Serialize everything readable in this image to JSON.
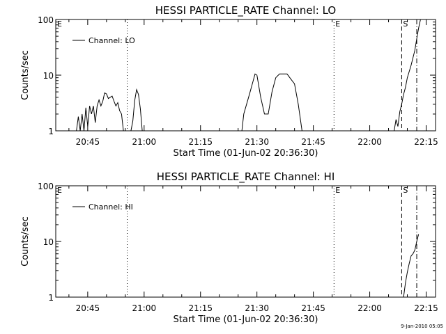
{
  "footer": {
    "timestamp": "9-Jan-2010 05:05"
  },
  "chart_data": [
    {
      "type": "line",
      "title": "HESSI PARTICLE_RATE Channel: LO",
      "xlabel": "Start Time (01-Jun-02 20:36:30)",
      "ylabel": "Counts/sec",
      "y_scale": "log",
      "ylim": [
        1,
        100
      ],
      "y_ticks": [
        {
          "value": 1,
          "label": "1"
        },
        {
          "value": 10,
          "label": "10"
        },
        {
          "value": 100,
          "label": "100"
        }
      ],
      "xlim": [
        "20:36:30",
        "22:17:30"
      ],
      "x_ticks": [
        {
          "value": "20:45",
          "label": "20:45"
        },
        {
          "value": "21:00",
          "label": "21:00"
        },
        {
          "value": "21:15",
          "label": "21:15"
        },
        {
          "value": "21:30",
          "label": "21:30"
        },
        {
          "value": "21:45",
          "label": "21:45"
        },
        {
          "value": "22:00",
          "label": "22:00"
        },
        {
          "value": "22:15",
          "label": "22:15"
        }
      ],
      "legend": {
        "entry": "Channel: LO",
        "placement": "top-left"
      },
      "markers": [
        {
          "time": "20:36:30",
          "label": "E",
          "style": "none"
        },
        {
          "time": "20:55:30",
          "label": "",
          "style": "dotted"
        },
        {
          "time": "21:50:30",
          "label": "E",
          "style": "dotted"
        },
        {
          "time": "22:08:30",
          "label": "S",
          "style": "dashed"
        },
        {
          "time": "22:12:30",
          "label": "",
          "style": "dashdot"
        }
      ],
      "series": [
        {
          "points": [
            [
              "20:40:30",
              1
            ],
            [
              "20:42:00",
              1
            ],
            [
              "20:42:30",
              1.8
            ],
            [
              "20:43:00",
              1
            ],
            [
              "20:43:30",
              2
            ],
            [
              "20:44:00",
              1
            ],
            [
              "20:44:30",
              2.6
            ],
            [
              "20:45:00",
              1.2
            ],
            [
              "20:45:30",
              2.8
            ],
            [
              "20:46:00",
              2
            ],
            [
              "20:46:30",
              2.8
            ],
            [
              "20:47:00",
              1.4
            ],
            [
              "20:47:30",
              2.8
            ],
            [
              "20:48:00",
              3.6
            ],
            [
              "20:48:30",
              2.8
            ],
            [
              "20:49:00",
              3.4
            ],
            [
              "20:49:30",
              4.8
            ],
            [
              "20:50:00",
              4.6
            ],
            [
              "20:50:30",
              3.8
            ],
            [
              "20:51:00",
              4
            ],
            [
              "20:51:30",
              4.2
            ],
            [
              "20:52:00",
              3.4
            ],
            [
              "20:52:30",
              2.8
            ],
            [
              "20:53:00",
              3.2
            ],
            [
              "20:53:30",
              2.3
            ],
            [
              "20:54:00",
              2
            ],
            [
              "20:54:30",
              1
            ],
            [
              "20:55:00",
              1
            ],
            [
              "20:55:30",
              1
            ],
            [
              "20:56:00",
              1
            ],
            [
              "20:56:30",
              1
            ],
            [
              "20:57:00",
              1.5
            ],
            [
              "20:57:30",
              3.5
            ],
            [
              "20:58:00",
              5.5
            ],
            [
              "20:58:30",
              4.5
            ],
            [
              "20:59:00",
              2.5
            ],
            [
              "20:59:30",
              1
            ],
            [
              "21:00:00",
              1
            ],
            [
              "21:24:00",
              1
            ],
            [
              "21:26:00",
              1
            ],
            [
              "21:26:30",
              2
            ],
            [
              "21:28:00",
              4.5
            ],
            [
              "21:29:30",
              10.5
            ],
            [
              "21:30:00",
              10
            ],
            [
              "21:31:00",
              4
            ],
            [
              "21:32:00",
              2
            ],
            [
              "21:33:00",
              2
            ],
            [
              "21:34:00",
              5
            ],
            [
              "21:35:00",
              9
            ],
            [
              "21:36:00",
              10.5
            ],
            [
              "21:37:00",
              10.5
            ],
            [
              "21:38:00",
              10.5
            ],
            [
              "21:39:00",
              8.5
            ],
            [
              "21:40:00",
              7
            ],
            [
              "21:41:00",
              3
            ],
            [
              "21:42:00",
              1
            ],
            [
              "21:43:00",
              1
            ],
            [
              "22:06:30",
              1
            ],
            [
              "22:07:00",
              1.6
            ],
            [
              "22:07:30",
              1.2
            ],
            [
              "22:08:00",
              2.2
            ],
            [
              "22:08:30",
              3
            ],
            [
              "22:09:00",
              4.5
            ],
            [
              "22:09:30",
              6
            ],
            [
              "22:10:00",
              9
            ],
            [
              "22:11:00",
              15
            ],
            [
              "22:12:00",
              28
            ],
            [
              "22:12:30",
              45
            ],
            [
              "22:13:00",
              70
            ],
            [
              "22:13:30",
              100
            ]
          ]
        }
      ]
    },
    {
      "type": "line",
      "title": "HESSI PARTICLE_RATE Channel: HI",
      "xlabel": "Start Time (01-Jun-02 20:36:30)",
      "ylabel": "Counts/sec",
      "y_scale": "log",
      "ylim": [
        1,
        100
      ],
      "y_ticks": [
        {
          "value": 1,
          "label": "1"
        },
        {
          "value": 10,
          "label": "10"
        },
        {
          "value": 100,
          "label": "100"
        }
      ],
      "xlim": [
        "20:36:30",
        "22:17:30"
      ],
      "x_ticks": [
        {
          "value": "20:45",
          "label": "20:45"
        },
        {
          "value": "21:00",
          "label": "21:00"
        },
        {
          "value": "21:15",
          "label": "21:15"
        },
        {
          "value": "21:30",
          "label": "21:30"
        },
        {
          "value": "21:45",
          "label": "21:45"
        },
        {
          "value": "22:00",
          "label": "22:00"
        },
        {
          "value": "22:15",
          "label": "22:15"
        }
      ],
      "legend": {
        "entry": "Channel: HI",
        "placement": "top-left"
      },
      "markers": [
        {
          "time": "20:36:30",
          "label": "E",
          "style": "none"
        },
        {
          "time": "20:55:30",
          "label": "",
          "style": "dotted"
        },
        {
          "time": "21:50:30",
          "label": "E",
          "style": "dotted"
        },
        {
          "time": "22:08:30",
          "label": "S",
          "style": "dashed"
        },
        {
          "time": "22:12:30",
          "label": "",
          "style": "dashdot"
        }
      ],
      "series": [
        {
          "points": [
            [
              "22:09:00",
              1
            ],
            [
              "22:09:30",
              1.8
            ],
            [
              "22:10:00",
              2.8
            ],
            [
              "22:10:30",
              4
            ],
            [
              "22:11:00",
              5.5
            ],
            [
              "22:11:30",
              6
            ],
            [
              "22:12:00",
              7
            ],
            [
              "22:12:30",
              10
            ],
            [
              "22:13:00",
              13.5
            ]
          ]
        }
      ]
    }
  ]
}
